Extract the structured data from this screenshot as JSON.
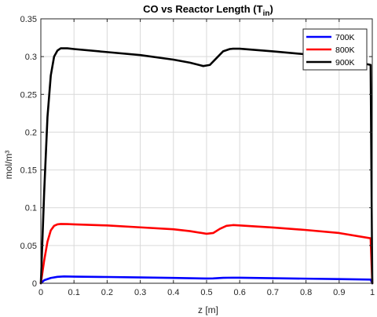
{
  "chart_data": {
    "type": "line",
    "title": {
      "main": "CO vs Reactor Length (T",
      "subscript": "in",
      "close": ")"
    },
    "xlabel": "z [m]",
    "ylabel": "mol/m³",
    "xlim": [
      0,
      1
    ],
    "ylim": [
      0,
      0.35
    ],
    "xticks": [
      0,
      0.1,
      0.2,
      0.3,
      0.4,
      0.5,
      0.6,
      0.7,
      0.8,
      0.9,
      1
    ],
    "xtick_labels": [
      "0",
      "0.1",
      "0.2",
      "0.3",
      "0.4",
      "0.5",
      "0.6",
      "0.7",
      "0.8",
      "0.9",
      "1"
    ],
    "yticks": [
      0,
      0.05,
      0.1,
      0.15,
      0.2,
      0.25,
      0.3,
      0.35
    ],
    "ytick_labels": [
      "0",
      "0.05",
      "0.1",
      "0.15",
      "0.2",
      "0.25",
      "0.3",
      "0.35"
    ],
    "grid": true,
    "legend_position": "top-right",
    "series": [
      {
        "name": "700K",
        "color": "#0000ff",
        "x": [
          0,
          0.01,
          0.03,
          0.05,
          0.07,
          0.1,
          0.2,
          0.3,
          0.4,
          0.5,
          0.52,
          0.55,
          0.58,
          0.6,
          0.7,
          0.8,
          0.9,
          0.995,
          1
        ],
        "y": [
          0,
          0.004,
          0.007,
          0.0085,
          0.009,
          0.0088,
          0.0083,
          0.0077,
          0.0071,
          0.0063,
          0.0064,
          0.0072,
          0.0074,
          0.0073,
          0.0067,
          0.0061,
          0.0055,
          0.0049,
          0
        ]
      },
      {
        "name": "800K",
        "color": "#ff0000",
        "x": [
          0,
          0.01,
          0.02,
          0.03,
          0.04,
          0.05,
          0.06,
          0.08,
          0.1,
          0.2,
          0.3,
          0.4,
          0.45,
          0.5,
          0.52,
          0.54,
          0.56,
          0.58,
          0.6,
          0.7,
          0.8,
          0.9,
          0.995,
          1
        ],
        "y": [
          0,
          0.03,
          0.055,
          0.07,
          0.076,
          0.078,
          0.0785,
          0.0783,
          0.078,
          0.0765,
          0.074,
          0.0715,
          0.069,
          0.0655,
          0.0665,
          0.072,
          0.076,
          0.077,
          0.0765,
          0.0738,
          0.0705,
          0.0665,
          0.0595,
          0
        ]
      },
      {
        "name": "900K",
        "color": "#000000",
        "x": [
          0,
          0.01,
          0.02,
          0.03,
          0.04,
          0.05,
          0.06,
          0.08,
          0.1,
          0.2,
          0.3,
          0.4,
          0.45,
          0.49,
          0.51,
          0.53,
          0.55,
          0.57,
          0.58,
          0.6,
          0.7,
          0.8,
          0.9,
          0.995,
          1
        ],
        "y": [
          0,
          0.12,
          0.22,
          0.275,
          0.3,
          0.308,
          0.311,
          0.311,
          0.31,
          0.306,
          0.302,
          0.296,
          0.292,
          0.2875,
          0.289,
          0.298,
          0.307,
          0.31,
          0.3105,
          0.3105,
          0.307,
          0.303,
          0.298,
          0.289,
          0
        ]
      }
    ]
  }
}
